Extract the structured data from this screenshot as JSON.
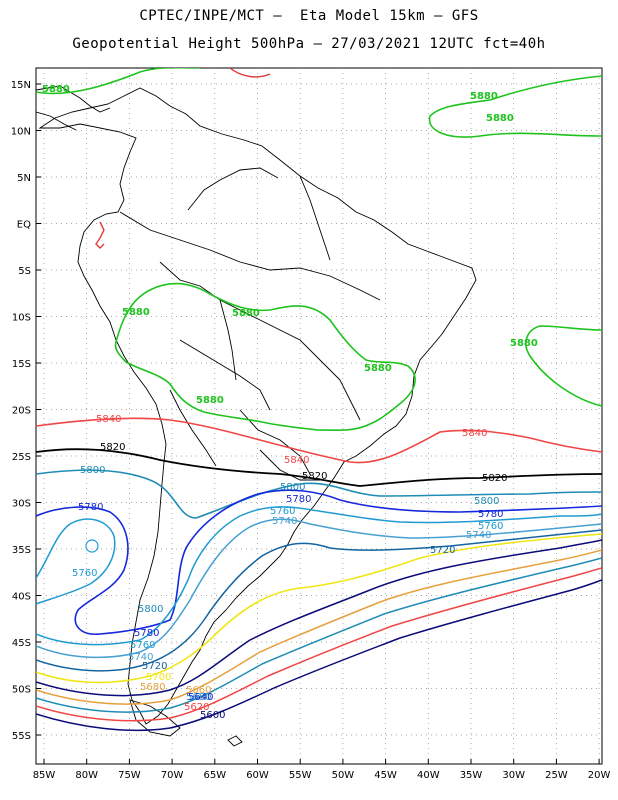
{
  "title": {
    "line1": "CPTEC/INPE/MCT –  Eta Model 15km – GFS",
    "line2": "Geopotential Height 500hPa – 27/03/2021 12UTC fct=40h"
  },
  "axes": {
    "lat_labels": [
      "15N",
      "10N",
      "5N",
      "EQ",
      "5S",
      "10S",
      "15S",
      "20S",
      "25S",
      "30S",
      "35S",
      "40S",
      "45S",
      "50S",
      "55S"
    ],
    "lon_labels": [
      "85W",
      "80W",
      "75W",
      "70W",
      "65W",
      "60W",
      "55W",
      "50W",
      "45W",
      "40W",
      "35W",
      "30W",
      "25W",
      "20W"
    ]
  },
  "colors": {
    "c5880": "#1ec31e",
    "c5860": "#e03c3c",
    "c5840": "#f04646",
    "c5820": "#000000",
    "c5800": "#1e8cb4",
    "c5780": "#1428dc",
    "c5760": "#1e9bd2",
    "c5740": "#46a0d2",
    "c5720": "#1464a0",
    "yellow": "#f0e614",
    "orange": "#e6a03c",
    "darkblue": "#0a0a78",
    "coast": "#000000"
  },
  "contour_labels": [
    {
      "id": "g1",
      "text": "5880",
      "color": "c5880"
    },
    {
      "id": "g2",
      "text": "5880",
      "color": "c5880"
    },
    {
      "id": "g3",
      "text": "5880",
      "color": "c5880"
    },
    {
      "id": "g4",
      "text": "5880",
      "color": "c5880"
    },
    {
      "id": "g5",
      "text": "5880",
      "color": "c5880"
    },
    {
      "id": "g6",
      "text": "5880",
      "color": "c5880"
    },
    {
      "id": "g7",
      "text": "5880",
      "color": "c5880"
    },
    {
      "id": "g8",
      "text": "5880",
      "color": "c5880"
    },
    {
      "id": "r1",
      "text": "5840",
      "color": "c5840"
    },
    {
      "id": "r2",
      "text": "5840",
      "color": "c5840"
    },
    {
      "id": "r3",
      "text": "5840",
      "color": "c5840"
    },
    {
      "id": "k1",
      "text": "5820",
      "color": "c5820"
    },
    {
      "id": "k2",
      "text": "5820",
      "color": "c5820"
    },
    {
      "id": "k3",
      "text": "5820",
      "color": "c5820"
    },
    {
      "id": "b1",
      "text": "5800",
      "color": "c5800"
    },
    {
      "id": "b2",
      "text": "5800",
      "color": "c5800"
    },
    {
      "id": "b3",
      "text": "5800",
      "color": "c5800"
    },
    {
      "id": "b4",
      "text": "5800",
      "color": "c5800"
    },
    {
      "id": "u1",
      "text": "5780",
      "color": "c5780"
    },
    {
      "id": "u2",
      "text": "5780",
      "color": "c5780"
    },
    {
      "id": "u3",
      "text": "5780",
      "color": "c5780"
    },
    {
      "id": "u4",
      "text": "5780",
      "color": "c5780"
    },
    {
      "id": "v1",
      "text": "5760",
      "color": "c5760"
    },
    {
      "id": "v2",
      "text": "5760",
      "color": "c5760"
    },
    {
      "id": "v3",
      "text": "5760",
      "color": "c5760"
    },
    {
      "id": "v4",
      "text": "5760",
      "color": "c5760"
    },
    {
      "id": "w1",
      "text": "5740",
      "color": "c5740"
    },
    {
      "id": "w2",
      "text": "5740",
      "color": "c5740"
    },
    {
      "id": "w3",
      "text": "5740",
      "color": "c5740"
    },
    {
      "id": "x1",
      "text": "5720",
      "color": "c5720"
    },
    {
      "id": "x2",
      "text": "5720",
      "color": "c5720"
    },
    {
      "id": "y1",
      "text": "5700",
      "color": "yellow"
    },
    {
      "id": "o1",
      "text": "5680",
      "color": "orange"
    },
    {
      "id": "o2",
      "text": "5660",
      "color": "orange"
    },
    {
      "id": "o3",
      "text": "5680",
      "color": "c5800"
    },
    {
      "id": "o4",
      "text": "5640",
      "color": "c5780"
    },
    {
      "id": "o5",
      "text": "5620",
      "color": "c5840"
    },
    {
      "id": "o6",
      "text": "5600",
      "color": "darkblue"
    }
  ]
}
